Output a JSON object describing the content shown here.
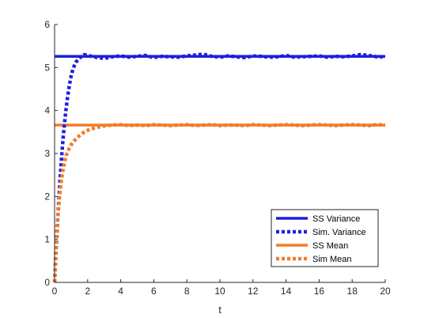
{
  "chart_data": {
    "type": "line",
    "title": "",
    "xlabel": "t",
    "ylabel": "",
    "xlim": [
      0,
      20
    ],
    "ylim": [
      0,
      6
    ],
    "xticks": [
      0,
      2,
      4,
      6,
      8,
      10,
      12,
      14,
      16,
      18,
      20
    ],
    "yticks": [
      0,
      1,
      2,
      3,
      4,
      5,
      6
    ],
    "grid": false,
    "legend_position": "bottom-right",
    "series": [
      {
        "name": "SS Variance",
        "style": "solid",
        "color": "#1f1fdf",
        "x": [
          0,
          20
        ],
        "y": [
          5.26,
          5.26
        ]
      },
      {
        "name": "Sim. Variance",
        "style": "dotted",
        "color": "#1f1fdf",
        "x": [
          0,
          0.1,
          0.2,
          0.3,
          0.4,
          0.5,
          0.6,
          0.7,
          0.8,
          0.9,
          1.0,
          1.1,
          1.2,
          1.3,
          1.4,
          1.5,
          1.6,
          1.7,
          1.8,
          2.0,
          2.5,
          3.0,
          3.5,
          4.0,
          4.5,
          5.0,
          5.5,
          6.0,
          6.5,
          7.0,
          7.5,
          8.0,
          8.5,
          9.0,
          9.5,
          10.0,
          10.5,
          11.0,
          11.5,
          12.0,
          12.5,
          13.0,
          13.5,
          14.0,
          14.5,
          15.0,
          15.5,
          16.0,
          16.5,
          17.0,
          17.5,
          18.0,
          18.5,
          19.0,
          19.5,
          20.0
        ],
        "y": [
          0,
          0.85,
          1.55,
          2.2,
          2.8,
          3.3,
          3.7,
          4.05,
          4.35,
          4.6,
          4.8,
          4.95,
          5.05,
          5.13,
          5.18,
          5.22,
          5.25,
          5.27,
          5.3,
          5.28,
          5.24,
          5.21,
          5.25,
          5.27,
          5.24,
          5.26,
          5.28,
          5.23,
          5.26,
          5.25,
          5.24,
          5.27,
          5.29,
          5.31,
          5.26,
          5.24,
          5.27,
          5.25,
          5.23,
          5.27,
          5.26,
          5.24,
          5.25,
          5.28,
          5.24,
          5.25,
          5.26,
          5.27,
          5.24,
          5.26,
          5.25,
          5.27,
          5.3,
          5.28,
          5.25,
          5.25
        ]
      },
      {
        "name": "SS Mean",
        "style": "solid",
        "color": "#f07c2a",
        "x": [
          0,
          20
        ],
        "y": [
          3.66,
          3.66
        ]
      },
      {
        "name": "Sim Mean",
        "style": "dotted",
        "color": "#f07c2a",
        "x": [
          0,
          0.1,
          0.2,
          0.3,
          0.4,
          0.5,
          0.6,
          0.7,
          0.8,
          0.9,
          1.0,
          1.2,
          1.4,
          1.6,
          1.8,
          2.0,
          2.3,
          2.6,
          3.0,
          3.5,
          4.0,
          4.5,
          5.0,
          5.5,
          6.0,
          6.5,
          7.0,
          7.5,
          8.0,
          8.5,
          9.0,
          9.5,
          10.0,
          10.5,
          11.0,
          11.5,
          12.0,
          12.5,
          13.0,
          13.5,
          14.0,
          14.5,
          15.0,
          15.5,
          16.0,
          16.5,
          17.0,
          17.5,
          18.0,
          18.5,
          19.0,
          19.5,
          20.0
        ],
        "y": [
          0,
          0.95,
          1.55,
          2.0,
          2.35,
          2.6,
          2.8,
          2.95,
          3.05,
          3.13,
          3.2,
          3.3,
          3.38,
          3.44,
          3.5,
          3.54,
          3.58,
          3.61,
          3.64,
          3.66,
          3.67,
          3.65,
          3.66,
          3.65,
          3.67,
          3.66,
          3.65,
          3.66,
          3.67,
          3.65,
          3.66,
          3.67,
          3.65,
          3.66,
          3.66,
          3.65,
          3.67,
          3.66,
          3.65,
          3.66,
          3.67,
          3.66,
          3.65,
          3.66,
          3.67,
          3.66,
          3.65,
          3.66,
          3.67,
          3.66,
          3.65,
          3.67,
          3.66
        ]
      }
    ]
  }
}
